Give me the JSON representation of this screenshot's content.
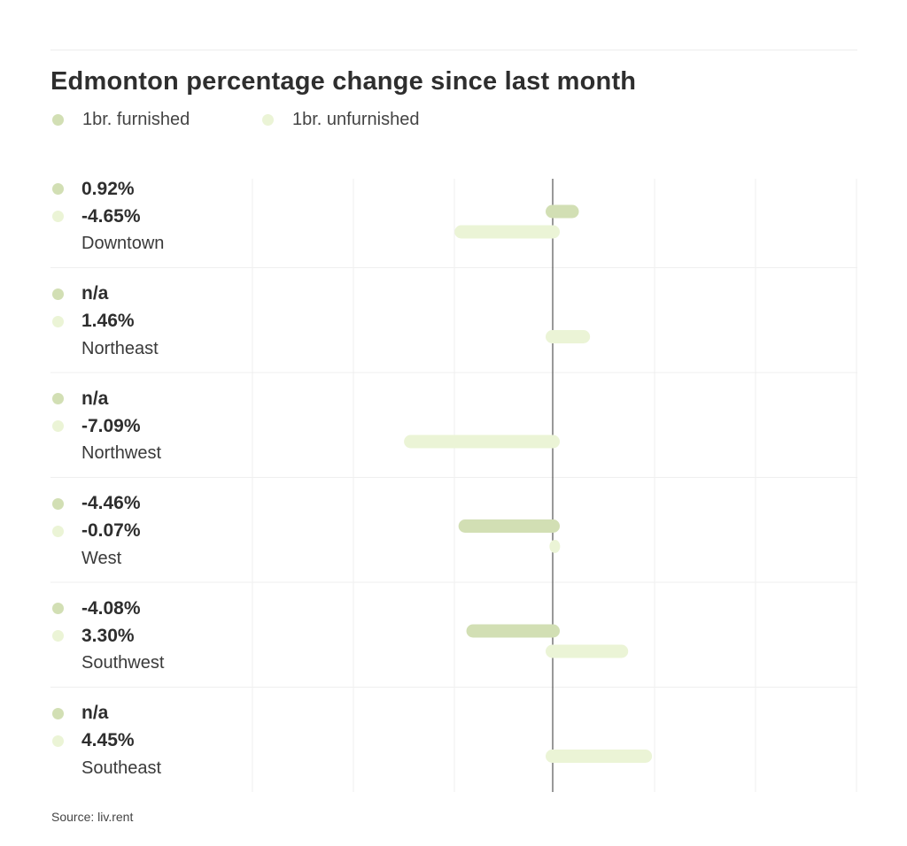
{
  "chart_data": {
    "type": "bar",
    "orientation": "horizontal",
    "title": "Edmonton percentage change since last month",
    "legend_placement": "top-left",
    "grid": true,
    "xlim": [
      -15,
      15
    ],
    "series": [
      {
        "name": "1br. furnished",
        "color": "#d2dfb4"
      },
      {
        "name": "1br. unfurnished",
        "color": "#ebf4d6"
      }
    ],
    "rows": [
      {
        "region": "Downtown",
        "furnished": 0.92,
        "unfurnished": -4.65,
        "furnished_label": "0.92%",
        "unfurnished_label": "-4.65%"
      },
      {
        "region": "Northeast",
        "furnished": null,
        "unfurnished": 1.46,
        "furnished_label": "n/a",
        "unfurnished_label": "1.46%"
      },
      {
        "region": "Northwest",
        "furnished": null,
        "unfurnished": -7.09,
        "furnished_label": "n/a",
        "unfurnished_label": "-7.09%"
      },
      {
        "region": "West",
        "furnished": -4.46,
        "unfurnished": -0.07,
        "furnished_label": "-4.46%",
        "unfurnished_label": "-0.07%"
      },
      {
        "region": "Southwest",
        "furnished": -4.08,
        "unfurnished": 3.3,
        "furnished_label": "-4.08%",
        "unfurnished_label": "3.30%"
      },
      {
        "region": "Southeast",
        "furnished": null,
        "unfurnished": 4.45,
        "furnished_label": "n/a",
        "unfurnished_label": "4.45%"
      }
    ]
  },
  "source": "Source: liv.rent"
}
